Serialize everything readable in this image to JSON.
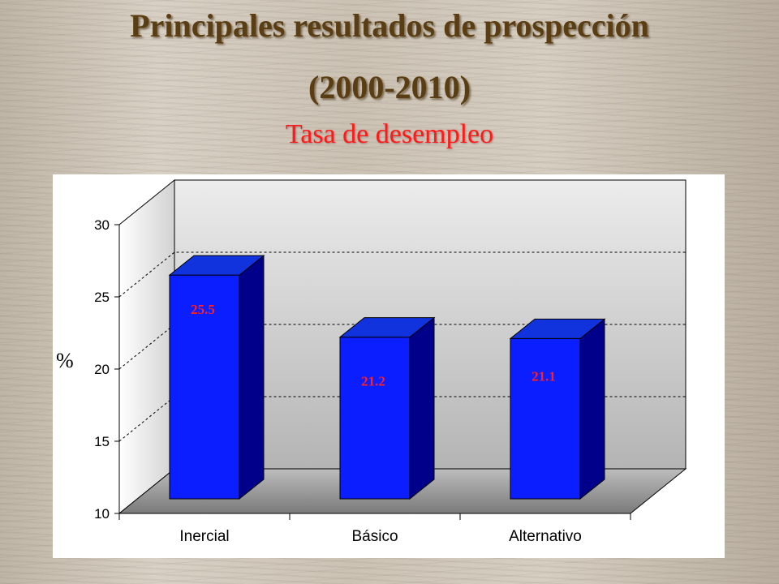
{
  "title_line1": "Principales resultados de prospección",
  "title_line2": "(2000-2010)",
  "chart_data": {
    "type": "bar",
    "title": "Tasa de desempleo",
    "ylabel": "%",
    "xlabel": "",
    "categories": [
      "Inercial",
      "Básico",
      "Alternativo"
    ],
    "values": [
      25.5,
      21.2,
      21.1
    ],
    "value_labels": [
      "25.5",
      "21.2",
      "21.1"
    ],
    "ylim": [
      10,
      30
    ],
    "yticks": [
      10,
      15,
      20,
      25,
      30
    ],
    "grid": "horizontal dashed",
    "three_d": true,
    "colors": {
      "bar_front": "#0a1eff",
      "bar_top": "#1133dd",
      "bar_side": "#00008a",
      "value_label": "#ff2020",
      "wall": "#c4c4c4",
      "floor": "#9a9a9a"
    }
  }
}
